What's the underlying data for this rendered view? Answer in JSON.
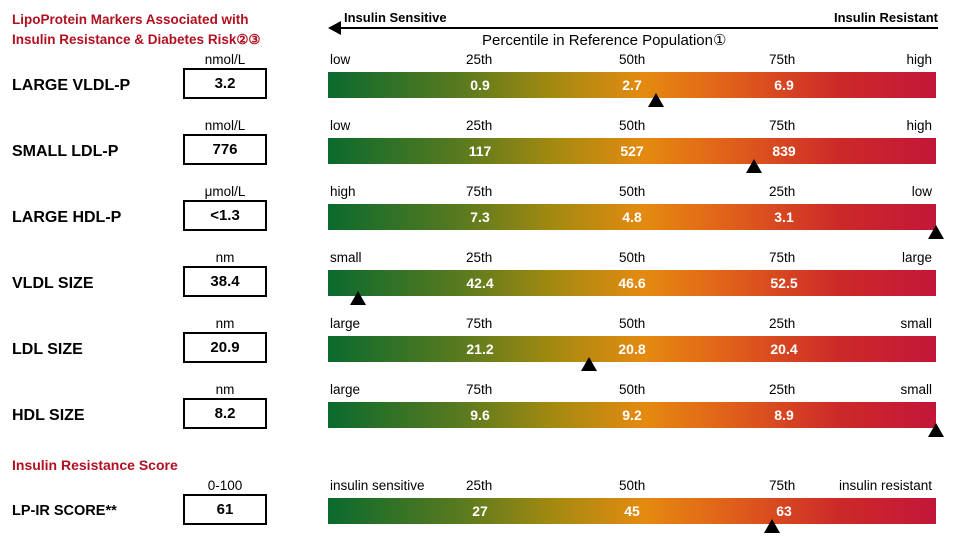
{
  "header": {
    "title_line1": "LipoProtein Markers Associated with",
    "title_line2": "Insulin Resistance & Diabetes Risk②③",
    "axis_left": "Insulin Sensitive",
    "axis_right": "Insulin Resistant",
    "subtitle": "Percentile in Reference Population①"
  },
  "markers": [
    {
      "name": "LARGE VLDL-P",
      "unit": "nmol/L",
      "value": "3.2",
      "ticks": [
        "low",
        "25th",
        "50th",
        "75th",
        "high"
      ],
      "bar_values": [
        "0.9",
        "2.7",
        "6.9"
      ],
      "marker_fraction": 0.54
    },
    {
      "name": "SMALL LDL-P",
      "unit": "nmol/L",
      "value": "776",
      "ticks": [
        "low",
        "25th",
        "50th",
        "75th",
        "high"
      ],
      "bar_values": [
        "117",
        "527",
        "839"
      ],
      "marker_fraction": 0.7
    },
    {
      "name": "LARGE HDL-P",
      "unit": "μmol/L",
      "value": "<1.3",
      "ticks": [
        "high",
        "75th",
        "50th",
        "25th",
        "low"
      ],
      "bar_values": [
        "7.3",
        "4.8",
        "3.1"
      ],
      "marker_fraction": 1.0
    },
    {
      "name": "VLDL SIZE",
      "unit": "nm",
      "value": "38.4",
      "ticks": [
        "small",
        "25th",
        "50th",
        "75th",
        "large"
      ],
      "bar_values": [
        "42.4",
        "46.6",
        "52.5"
      ],
      "marker_fraction": 0.05
    },
    {
      "name": "LDL SIZE",
      "unit": "nm",
      "value": "20.9",
      "ticks": [
        "large",
        "75th",
        "50th",
        "25th",
        "small"
      ],
      "bar_values": [
        "21.2",
        "20.8",
        "20.4"
      ],
      "marker_fraction": 0.43
    },
    {
      "name": "HDL SIZE",
      "unit": "nm",
      "value": "8.2",
      "ticks": [
        "large",
        "75th",
        "50th",
        "25th",
        "small"
      ],
      "bar_values": [
        "9.6",
        "9.2",
        "8.9"
      ],
      "marker_fraction": 1.0
    }
  ],
  "score_section": {
    "title": "Insulin Resistance Score",
    "name": "LP-IR SCORE**",
    "unit": "0-100",
    "value": "61",
    "ticks": [
      "insulin sensitive",
      "25th",
      "50th",
      "75th",
      "insulin resistant"
    ],
    "bar_values": [
      "27",
      "45",
      "63"
    ],
    "marker_fraction": 0.73
  },
  "colors": {
    "title_red": "#b01020",
    "gradient": [
      "#0a6a2e",
      "#a88a10",
      "#e58a10",
      "#cc2a28",
      "#c21638"
    ]
  }
}
